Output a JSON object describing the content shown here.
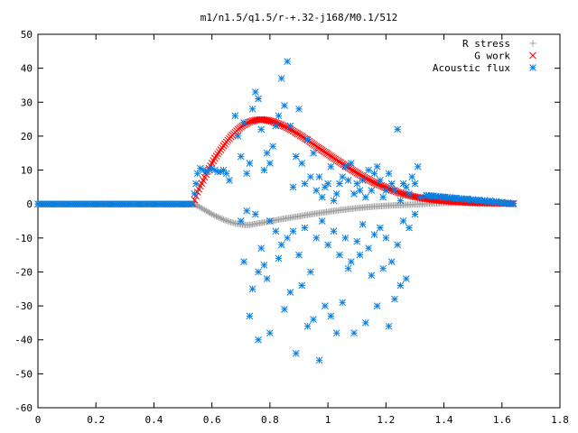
{
  "chart_data": {
    "type": "scatter",
    "title": "m1/n1.5/q1.5/r-+.32-j168/M0.1/512",
    "xlabel": "",
    "ylabel": "",
    "xlim": [
      0,
      1.8
    ],
    "ylim": [
      -60,
      50
    ],
    "xticks": [
      0,
      0.2,
      0.4,
      0.6,
      0.8,
      1,
      1.2,
      1.4,
      1.6,
      1.8
    ],
    "yticks": [
      -60,
      -50,
      -40,
      -30,
      -20,
      -10,
      0,
      10,
      20,
      30,
      40,
      50
    ],
    "xtick_labels": [
      "0",
      "0.2",
      "0.4",
      "0.6",
      "0.8",
      "1",
      "1.2",
      "1.4",
      "1.6",
      "1.8"
    ],
    "ytick_labels": [
      "-60",
      "-50",
      "-40",
      "-30",
      "-20",
      "-10",
      "0",
      "10",
      "20",
      "30",
      "40",
      "50"
    ],
    "grid": false,
    "legend_position": "top-right",
    "series": [
      {
        "name": "R stress",
        "marker": "plus",
        "color": "#a0a0a0",
        "x": [
          0.0,
          0.1,
          0.2,
          0.3,
          0.4,
          0.5,
          0.54,
          0.56,
          0.58,
          0.6,
          0.62,
          0.64,
          0.66,
          0.68,
          0.7,
          0.72,
          0.74,
          0.76,
          0.8,
          0.85,
          0.9,
          0.95,
          1.0,
          1.05,
          1.1,
          1.15,
          1.2,
          1.25,
          1.3,
          1.35,
          1.4,
          1.45,
          1.5,
          1.55,
          1.6,
          1.64
        ],
        "y": [
          0,
          0,
          0,
          0,
          0,
          0,
          0,
          -1.0,
          -2.0,
          -3.0,
          -3.8,
          -4.6,
          -5.2,
          -5.7,
          -6.0,
          -6.2,
          -6.0,
          -5.7,
          -5.1,
          -4.3,
          -3.6,
          -2.9,
          -2.3,
          -1.7,
          -1.2,
          -0.8,
          -0.5,
          -0.3,
          -0.1,
          0.1,
          0.3,
          0.3,
          0.2,
          0.1,
          0.05,
          0
        ]
      },
      {
        "name": "G work",
        "marker": "cross",
        "color": "#ff0000",
        "x": [
          0.535,
          0.55,
          0.57,
          0.59,
          0.61,
          0.63,
          0.65,
          0.67,
          0.69,
          0.71,
          0.73,
          0.75,
          0.77,
          0.79,
          0.81,
          0.84,
          0.87,
          0.9,
          0.93,
          0.96,
          1.0,
          1.04,
          1.08,
          1.12,
          1.16,
          1.2,
          1.25,
          1.3,
          1.35,
          1.4,
          1.45,
          1.5,
          1.55,
          1.6,
          1.64
        ],
        "y": [
          0,
          3.5,
          7,
          10.5,
          13.5,
          16,
          18.3,
          20.3,
          22,
          23.3,
          24.2,
          24.7,
          24.9,
          24.7,
          24.3,
          23.3,
          22,
          20.5,
          18.8,
          17,
          14.7,
          12.4,
          10.2,
          8.1,
          6.3,
          4.8,
          3.2,
          2.1,
          1.4,
          0.9,
          0.6,
          0.4,
          0.3,
          0.2,
          0.1
        ]
      },
      {
        "name": "Acoustic flux",
        "marker": "star",
        "color": "#0a7fe0",
        "x": [
          0.0,
          0.05,
          0.1,
          0.15,
          0.2,
          0.25,
          0.3,
          0.35,
          0.4,
          0.45,
          0.5,
          0.53,
          0.54,
          0.545,
          0.55,
          0.56,
          0.57,
          0.58,
          0.59,
          0.6,
          0.61,
          0.62,
          0.63,
          0.64,
          0.65,
          0.66,
          0.68,
          0.69,
          0.7,
          0.71,
          0.72,
          0.73,
          0.74,
          0.75,
          0.76,
          0.77,
          0.78,
          0.79,
          0.8,
          0.81,
          0.82,
          0.83,
          0.84,
          0.85,
          0.86,
          0.87,
          0.88,
          0.89,
          0.9,
          0.91,
          0.92,
          0.93,
          0.94,
          0.95,
          0.96,
          0.97,
          0.98,
          0.99,
          1.0,
          1.01,
          1.02,
          1.03,
          1.04,
          1.05,
          1.06,
          1.07,
          1.08,
          1.09,
          1.1,
          1.11,
          1.12,
          1.13,
          1.14,
          1.15,
          1.16,
          1.17,
          1.18,
          1.19,
          1.2,
          1.21,
          1.22,
          1.23,
          1.24,
          1.25,
          1.26,
          1.27,
          1.28,
          1.29,
          1.3,
          1.31,
          1.32,
          0.7,
          0.72,
          0.75,
          0.76,
          0.78,
          0.8,
          0.82,
          0.84,
          0.86,
          0.88,
          0.9,
          0.92,
          0.94,
          0.96,
          0.98,
          1.0,
          1.02,
          1.04,
          1.06,
          1.08,
          1.1,
          1.12,
          1.14,
          1.16,
          1.18,
          1.2,
          1.22,
          1.24,
          1.26,
          1.28,
          1.3,
          0.71,
          0.74,
          0.77,
          0.79,
          0.83,
          0.87,
          0.91,
          0.95,
          0.99,
          1.03,
          1.07,
          1.11,
          1.15,
          1.19,
          1.23,
          1.27,
          0.73,
          0.76,
          0.8,
          0.85,
          0.89,
          0.93,
          0.97,
          1.01,
          1.05,
          1.09,
          1.13,
          1.17,
          1.21,
          1.25,
          1.34,
          1.36,
          1.38,
          1.4,
          1.42,
          1.44,
          1.46,
          1.48,
          1.5,
          1.52,
          1.54,
          1.56,
          1.58,
          1.6,
          1.62,
          1.64
        ],
        "y": [
          0,
          0,
          0,
          0,
          0,
          0,
          0,
          0,
          0,
          0,
          0,
          0,
          3,
          6,
          9,
          10.5,
          10,
          9.5,
          10,
          10.5,
          10,
          9.5,
          9.5,
          10,
          9,
          7,
          26,
          20,
          14,
          24,
          9,
          12,
          28,
          33,
          31,
          22,
          10,
          15,
          12,
          17,
          23,
          26,
          37,
          29,
          42,
          23,
          5,
          14,
          28,
          12,
          6,
          19,
          8,
          15,
          4,
          8,
          2,
          5,
          6,
          11,
          1,
          3,
          6,
          8,
          11,
          7,
          12,
          3,
          6,
          4,
          7,
          2,
          10,
          4,
          9,
          11,
          7,
          2,
          4,
          9,
          6,
          4,
          22,
          1,
          6,
          5,
          3,
          8,
          6,
          11,
          2,
          -5,
          -2,
          -3,
          -20,
          -18,
          -5,
          -8,
          -12,
          -10,
          -8,
          -15,
          -7,
          -20,
          -10,
          -5,
          -12,
          -8,
          -15,
          -10,
          -17,
          -11,
          -6,
          -13,
          -9,
          -7,
          -10,
          -17,
          -12,
          -5,
          -7,
          -3,
          -17,
          -25,
          -13,
          -22,
          -16,
          -26,
          -24,
          -34,
          -30,
          -38,
          -19,
          -15,
          -21,
          -19,
          -28,
          -22,
          -33,
          -40,
          -38,
          -31,
          -44,
          -36,
          -46,
          -33,
          -29,
          -38,
          -35,
          -30,
          -36,
          -24,
          2.5,
          2.3,
          2.2,
          2.0,
          1.9,
          1.7,
          1.6,
          1.5,
          1.3,
          1.2,
          1.1,
          1.0,
          0.8,
          0.6,
          0.4,
          0.2
        ]
      }
    ]
  }
}
